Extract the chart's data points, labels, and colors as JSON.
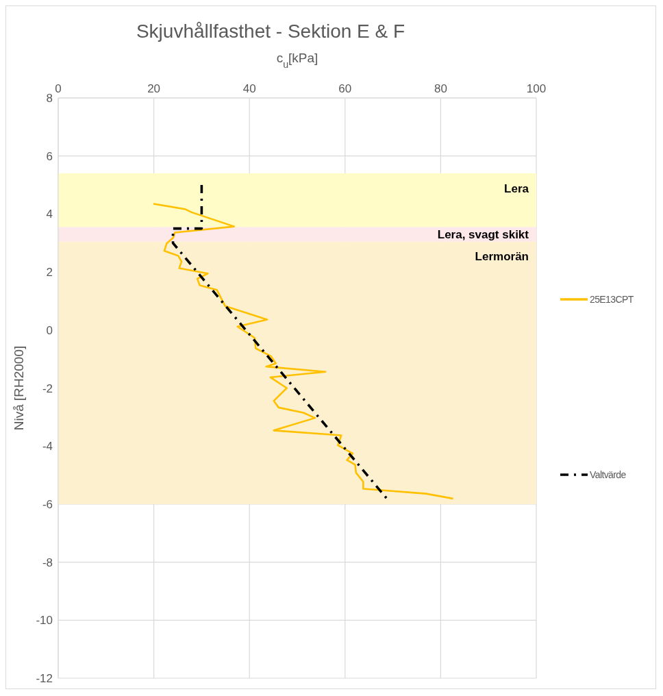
{
  "chart_data": {
    "type": "line",
    "title": "Skjuvhållfasthet - Sektion E & F",
    "xlabel": "c$_{u}$[kPa]",
    "ylabel": "Nivå [RH2000]",
    "xlim": [
      0,
      100
    ],
    "xticks": [
      0,
      20,
      40,
      60,
      80,
      100
    ],
    "ylim": [
      -12,
      8
    ],
    "yticks": [
      -12,
      -10,
      -8,
      -6,
      -4,
      -2,
      0,
      2,
      4,
      6,
      8
    ],
    "grid": true,
    "legend": "right",
    "marker": "none",
    "series": [
      {
        "name": "25E13CPT",
        "color": "#ffc000",
        "line_style": "solid",
        "x": [
          19.9,
          26.5,
          27.9,
          36.8,
          24.4,
          24.1,
          22.7,
          22.2,
          25.1,
          25.8,
          25.3,
          31.3,
          29.1,
          29.6,
          33.2,
          34.9,
          43.7,
          37.5,
          41.1,
          41.3,
          44.5,
          45.5,
          43.5,
          55.9,
          44.4,
          47.8,
          45.1,
          46.1,
          51.3,
          53.7,
          45.1,
          59.2,
          58.5,
          60.2,
          61.6,
          60.4,
          62.1,
          62.3,
          63.8,
          63.8,
          76.9,
          82.6
        ],
        "values": [
          4.35,
          4.17,
          4.06,
          3.57,
          3.36,
          3.19,
          2.99,
          2.73,
          2.56,
          2.36,
          2.13,
          1.95,
          1.77,
          1.54,
          1.38,
          0.83,
          0.36,
          0.12,
          -0.27,
          -0.63,
          -0.9,
          -1.15,
          -1.26,
          -1.44,
          -1.63,
          -2.0,
          -2.44,
          -2.67,
          -2.85,
          -3.03,
          -3.46,
          -3.63,
          -3.97,
          -4.13,
          -4.25,
          -4.48,
          -4.64,
          -4.92,
          -5.23,
          -5.47,
          -5.64,
          -5.81
        ]
      },
      {
        "name": "Valtvärde",
        "color": "#000000",
        "line_style": "dashed",
        "x": [
          30,
          30,
          24,
          24,
          69.2
        ],
        "values": [
          5.0,
          3.5,
          3.5,
          3.0,
          -5.9
        ]
      }
    ],
    "bands": [
      {
        "axis": "y",
        "from": 3.55,
        "to": 5.4,
        "label": "Lera",
        "color": "#fffcc8"
      },
      {
        "axis": "y",
        "from": 3.05,
        "to": 3.55,
        "label": "Lera, svagt skikt",
        "color": "#fde8ea"
      },
      {
        "axis": "y",
        "from": -6,
        "to": 3.05,
        "label": "Lermorän",
        "color": "#fdf0cf"
      }
    ]
  }
}
